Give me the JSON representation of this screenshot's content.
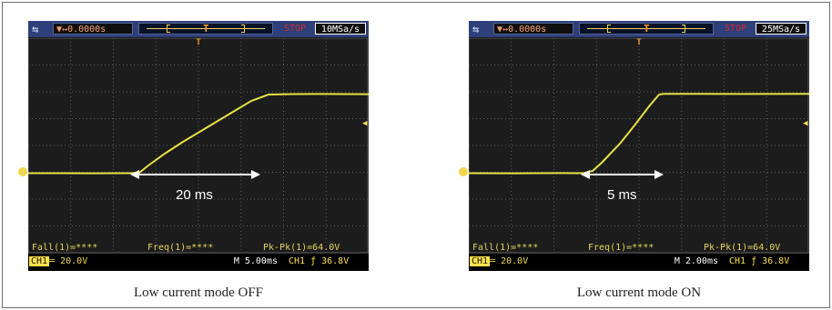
{
  "panels": [
    {
      "trigger_delay": "0.0000s",
      "run_state": "STOP",
      "sample_rate": "10MSa/s",
      "measurements": {
        "fall": "Fall(1)=****",
        "freq": "Freq(1)=****",
        "pkpk": "Pk-Pk(1)=64.0V"
      },
      "channel_scale": "20.0V",
      "timebase": "M 5.00ms",
      "trigger_level": "CH1 ƒ 36.8V",
      "annotation": "20 ms",
      "caption": "Low current mode OFF",
      "trace": {
        "start_level": 0.0,
        "end_level": 64.0,
        "rise_start_div": 3.0,
        "rise_end_div": 7.1
      }
    },
    {
      "trigger_delay": "0.0000s",
      "run_state": "STOP",
      "sample_rate": "25MSa/s",
      "measurements": {
        "fall": "Fall(1)=****",
        "freq": "Freq(1)=****",
        "pkpk": "Pk-Pk(1)=64.0V"
      },
      "channel_scale": "20.0V",
      "timebase": "M 2.00ms",
      "trigger_level": "CH1 ƒ 36.8V",
      "annotation": "5 ms",
      "caption": "Low current mode ON",
      "trace": {
        "start_level": 0.0,
        "end_level": 64.0,
        "rise_start_div": 3.55,
        "rise_end_div": 6.0
      }
    }
  ],
  "theme": {
    "screen_bg": "#1c1c1c",
    "grid": "#5d5d5d",
    "trace": "#e9e243",
    "header": "#2e3f79"
  },
  "icons": {
    "channel_marker": "channel-marker-icon",
    "trigger_marker": "trigger-marker-icon",
    "trigger_level": "trigger-level-icon",
    "arrow": "double-arrow-icon"
  }
}
